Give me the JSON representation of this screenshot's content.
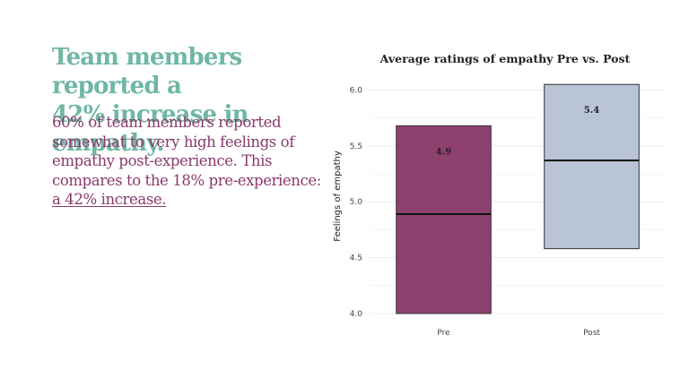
{
  "headline": {
    "line1": "Team members reported a",
    "line2": "42% increase in empathy."
  },
  "body": {
    "text": "60% of team members reported somewhat to very high feelings of empathy post-experience. This compares to the 18% pre-experience: ",
    "highlight": "a 42% increase."
  },
  "colors": {
    "headline": "#6fb7a5",
    "body": "#8a3a6c",
    "pre": "#8e416f",
    "post": "#b9c4d6"
  },
  "chart_data": {
    "type": "bar",
    "title": "Average ratings of empathy Pre vs. Post",
    "xlabel": "",
    "ylabel": "Feelings of empathy",
    "ylim": [
      4.0,
      6.1
    ],
    "yticks": [
      "4.0",
      "4.5",
      "5.0",
      "5.5",
      "6.0"
    ],
    "grid": true,
    "legend": "none",
    "categories": [
      "Pre",
      "Post"
    ],
    "series": [
      {
        "values": [
          4.9,
          5.4
        ],
        "labels": [
          "4.9",
          "5.4"
        ],
        "low": [
          4.0,
          4.58
        ],
        "high": [
          5.68,
          6.05
        ],
        "center": [
          4.89,
          5.37
        ],
        "colors": [
          "#8e416f",
          "#b9c4d6"
        ]
      }
    ]
  }
}
